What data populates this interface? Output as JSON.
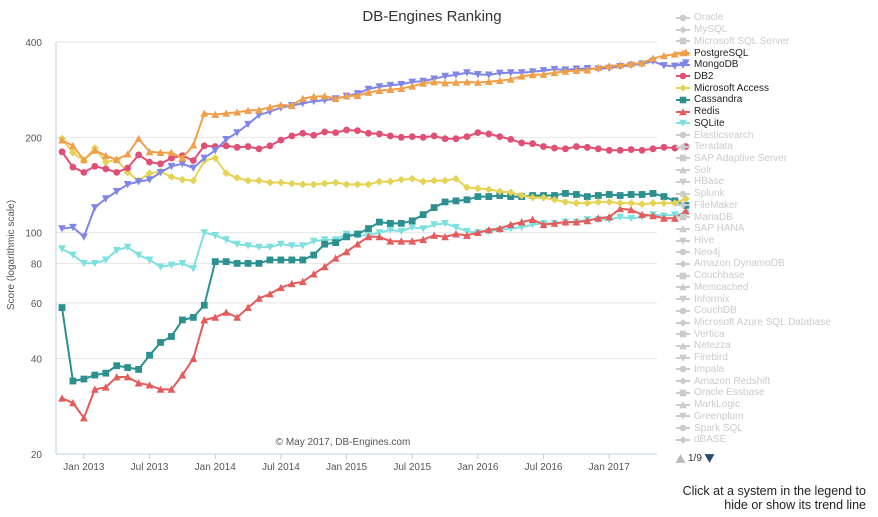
{
  "chart_data": {
    "type": "line",
    "title": "DB-Engines Ranking",
    "ylabel": "Score (logarithmic scale)",
    "xlabel": "",
    "y_scale": "log",
    "ylim": [
      20,
      400
    ],
    "yticks": [
      20,
      40,
      60,
      80,
      100,
      200,
      400
    ],
    "xticks": [
      "Jan 2013",
      "Jul 2013",
      "Jan 2014",
      "Jul 2014",
      "Jan 2015",
      "Jul 2015",
      "Jan 2016",
      "Jul 2016",
      "Jan 2017"
    ],
    "x_start": "2012-11",
    "x_end": "2017-05",
    "credit": "© May 2017, DB-Engines.com",
    "series": [
      {
        "name": "PostgreSQL",
        "color": "#f0a04b",
        "marker": "triangle-up",
        "values": [
          196,
          188,
          170,
          182,
          175,
          170,
          177,
          198,
          180,
          179,
          179,
          172,
          189,
          238,
          236,
          238,
          240,
          243,
          244,
          249,
          253,
          252,
          265,
          269,
          270,
          265,
          270,
          271,
          277,
          281,
          283,
          285,
          290,
          296,
          299,
          297,
          298,
          299,
          298,
          300,
          302,
          305,
          312,
          315,
          316,
          320,
          323,
          325,
          326,
          332,
          336,
          338,
          341,
          343,
          355,
          362,
          366,
          371
        ]
      },
      {
        "name": "MongoDB",
        "color": "#8085e9",
        "marker": "triangle-down",
        "values": [
          103,
          104,
          97,
          120,
          128,
          135,
          142,
          145,
          147,
          155,
          162,
          165,
          160,
          172,
          182,
          197,
          207,
          220,
          235,
          241,
          248,
          252,
          256,
          260,
          262,
          265,
          270,
          275,
          284,
          289,
          292,
          294,
          299,
          301,
          306,
          312,
          315,
          320,
          316,
          315,
          319,
          320,
          320,
          322,
          325,
          328,
          327,
          329,
          330,
          329,
          331,
          335,
          338,
          341,
          348,
          337,
          336,
          344
        ]
      },
      {
        "name": "DB2",
        "color": "#e05075",
        "marker": "circle",
        "values": [
          180,
          161,
          155,
          162,
          159,
          155,
          160,
          176,
          167,
          165,
          172,
          175,
          169,
          188,
          187,
          188,
          186,
          187,
          184,
          188,
          196,
          202,
          206,
          203,
          208,
          207,
          211,
          210,
          206,
          205,
          202,
          200,
          201,
          200,
          202,
          198,
          198,
          201,
          207,
          205,
          201,
          197,
          192,
          191,
          187,
          185,
          184,
          187,
          186,
          184,
          182,
          182,
          183,
          182,
          184,
          186,
          185,
          187
        ]
      },
      {
        "name": "Microsoft Access",
        "color": "#e4d354",
        "marker": "diamond",
        "values": [
          198,
          179,
          169,
          185,
          167,
          170,
          155,
          146,
          154,
          156,
          150,
          147,
          146,
          169,
          172,
          154,
          149,
          146,
          146,
          144,
          144,
          143,
          142,
          142,
          143,
          144,
          142,
          142,
          142,
          145,
          145,
          147,
          148,
          145,
          146,
          146,
          148,
          139,
          138,
          137,
          135,
          134,
          131,
          129,
          129,
          127,
          125,
          124,
          124,
          125,
          125,
          124,
          124,
          123,
          124,
          124,
          124,
          128
        ]
      },
      {
        "name": "Cassandra",
        "color": "#2b908f",
        "marker": "square",
        "values": [
          58,
          34,
          34.5,
          35.5,
          36,
          38,
          37.5,
          37,
          41,
          45,
          47,
          53,
          54,
          59,
          81,
          81,
          80,
          80,
          80,
          82,
          82,
          82,
          82,
          85,
          92,
          93,
          97,
          99,
          103,
          108,
          107,
          107,
          109,
          114,
          120,
          125,
          126,
          127,
          130,
          130,
          131,
          130,
          130,
          131,
          131,
          131,
          133,
          132,
          130,
          131,
          132,
          131,
          132,
          132,
          133,
          130,
          126,
          122
        ]
      },
      {
        "name": "Redis",
        "color": "#e45c5c",
        "marker": "triangle-up",
        "values": [
          30,
          29,
          26,
          32,
          32.5,
          35,
          35,
          33.5,
          33,
          32,
          32,
          35.5,
          40,
          53,
          54,
          56,
          54,
          58,
          62,
          64,
          67,
          69,
          70,
          74,
          78,
          83,
          87,
          92,
          97,
          97,
          94,
          94,
          94,
          95,
          98,
          97,
          99,
          98,
          100,
          102,
          103,
          106,
          108,
          110,
          106,
          107,
          108,
          108,
          109,
          111,
          112,
          119,
          118,
          114,
          113,
          111,
          111,
          117
        ]
      },
      {
        "name": "SQLite",
        "color": "#7fe0e0",
        "marker": "triangle-down",
        "values": [
          89,
          85,
          80,
          80,
          82,
          88,
          90,
          85,
          82,
          78,
          79,
          80,
          77,
          100,
          98,
          95,
          92,
          91,
          90,
          90,
          92,
          91,
          91,
          94,
          95,
          95,
          99,
          98,
          98,
          100,
          102,
          101,
          104,
          103,
          106,
          107,
          104,
          101,
          100,
          101,
          102,
          103,
          104,
          106,
          107,
          107,
          108,
          108,
          110,
          110,
          110,
          112,
          111,
          112,
          114,
          113,
          114,
          115
        ]
      }
    ]
  },
  "legend": [
    {
      "name": "Oracle",
      "active": false,
      "marker": "circle"
    },
    {
      "name": "MySQL",
      "active": false,
      "marker": "diamond"
    },
    {
      "name": "Microsoft SQL Server",
      "active": false,
      "marker": "square"
    },
    {
      "name": "PostgreSQL",
      "active": true,
      "marker": "triangle-up",
      "color": "#f0a04b"
    },
    {
      "name": "MongoDB",
      "active": true,
      "marker": "triangle-down",
      "color": "#8085e9"
    },
    {
      "name": "DB2",
      "active": true,
      "marker": "circle",
      "color": "#e05075"
    },
    {
      "name": "Microsoft Access",
      "active": true,
      "marker": "diamond",
      "color": "#e4d354"
    },
    {
      "name": "Cassandra",
      "active": true,
      "marker": "square",
      "color": "#2b908f"
    },
    {
      "name": "Redis",
      "active": true,
      "marker": "triangle-up",
      "color": "#e45c5c"
    },
    {
      "name": "SQLite",
      "active": true,
      "marker": "triangle-down",
      "color": "#7fe0e0"
    },
    {
      "name": "Elasticsearch",
      "active": false,
      "marker": "circle"
    },
    {
      "name": "Teradata",
      "active": false,
      "marker": "diamond"
    },
    {
      "name": "SAP Adaptive Server",
      "active": false,
      "marker": "square"
    },
    {
      "name": "Solr",
      "active": false,
      "marker": "triangle-up"
    },
    {
      "name": "HBase",
      "active": false,
      "marker": "triangle-down"
    },
    {
      "name": "Splunk",
      "active": false,
      "marker": "circle"
    },
    {
      "name": "FileMaker",
      "active": false,
      "marker": "diamond"
    },
    {
      "name": "MariaDB",
      "active": false,
      "marker": "square"
    },
    {
      "name": "SAP HANA",
      "active": false,
      "marker": "triangle-up"
    },
    {
      "name": "Hive",
      "active": false,
      "marker": "triangle-down"
    },
    {
      "name": "Neo4j",
      "active": false,
      "marker": "circle"
    },
    {
      "name": "Amazon DynamoDB",
      "active": false,
      "marker": "diamond"
    },
    {
      "name": "Couchbase",
      "active": false,
      "marker": "square"
    },
    {
      "name": "Memcached",
      "active": false,
      "marker": "triangle-up"
    },
    {
      "name": "Informix",
      "active": false,
      "marker": "triangle-down"
    },
    {
      "name": "CouchDB",
      "active": false,
      "marker": "circle"
    },
    {
      "name": "Microsoft Azure SQL Database",
      "active": false,
      "marker": "diamond"
    },
    {
      "name": "Vertica",
      "active": false,
      "marker": "square"
    },
    {
      "name": "Netezza",
      "active": false,
      "marker": "triangle-up"
    },
    {
      "name": "Firebird",
      "active": false,
      "marker": "triangle-down"
    },
    {
      "name": "Impala",
      "active": false,
      "marker": "circle"
    },
    {
      "name": "Amazon Redshift",
      "active": false,
      "marker": "diamond"
    },
    {
      "name": "Oracle Essbase",
      "active": false,
      "marker": "square"
    },
    {
      "name": "MarkLogic",
      "active": false,
      "marker": "triangle-up"
    },
    {
      "name": "Greenplum",
      "active": false,
      "marker": "triangle-down"
    },
    {
      "name": "Spark SQL",
      "active": false,
      "marker": "circle"
    },
    {
      "name": "dBASE",
      "active": false,
      "marker": "diamond"
    }
  ],
  "colors": {
    "inactive": "#cccccc",
    "axis": "#c0d0e0",
    "grid": "#e6e6e6",
    "text": "#333333"
  },
  "pager": {
    "label": "1/9",
    "prev_icon": "triangle-up-icon",
    "next_icon": "triangle-down-icon",
    "prev_color": "#bbbbbb",
    "next_color": "#274b6d"
  },
  "note": "Click at a system in the legend to hide or show its trend line"
}
